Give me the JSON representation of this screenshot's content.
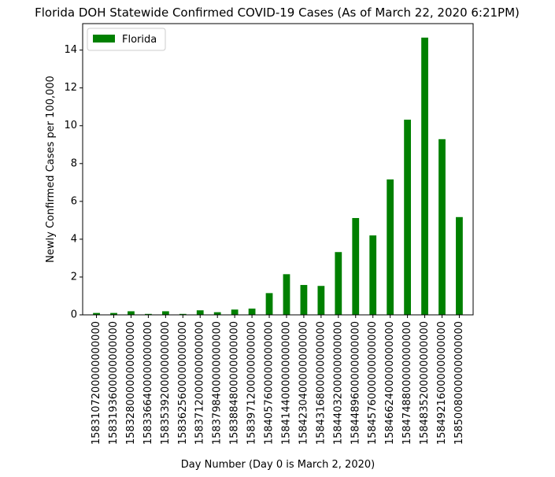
{
  "chart_data": {
    "type": "bar",
    "title": "Florida DOH Statewide Confirmed COVID-19 Cases (As of March 22, 2020 6:21PM)",
    "xlabel": "Day Number (Day 0 is March 2, 2020)",
    "ylabel": "Newly Confirmed Cases per 100,000",
    "ylim": [
      0,
      15.4
    ],
    "yticks": [
      0,
      2,
      4,
      6,
      8,
      10,
      12,
      14
    ],
    "categories": [
      "1583107200000000000",
      "1583193600000000000",
      "1583280000000000000",
      "1583366400000000000",
      "1583539200000000000",
      "1583625600000000000",
      "1583712000000000000",
      "1583798400000000000",
      "1583884800000000000",
      "1583971200000000000",
      "1584057600000000000",
      "1584144000000000000",
      "1584230400000000000",
      "1584316800000000000",
      "1584403200000000000",
      "1584489600000000000",
      "1584576000000000000",
      "1584662400000000000",
      "1584748800000000000",
      "1584835200000000000",
      "1584921600000000000",
      "1585008000000000000"
    ],
    "series": [
      {
        "name": "Florida",
        "color": "#008000",
        "values": [
          0.1,
          0.1,
          0.19,
          0.05,
          0.19,
          0.05,
          0.24,
          0.14,
          0.28,
          0.33,
          1.15,
          2.15,
          1.58,
          1.53,
          3.32,
          5.12,
          4.2,
          7.16,
          10.32,
          14.66,
          9.29,
          5.17
        ]
      }
    ],
    "grid": false,
    "legend_position": "upper-left"
  }
}
